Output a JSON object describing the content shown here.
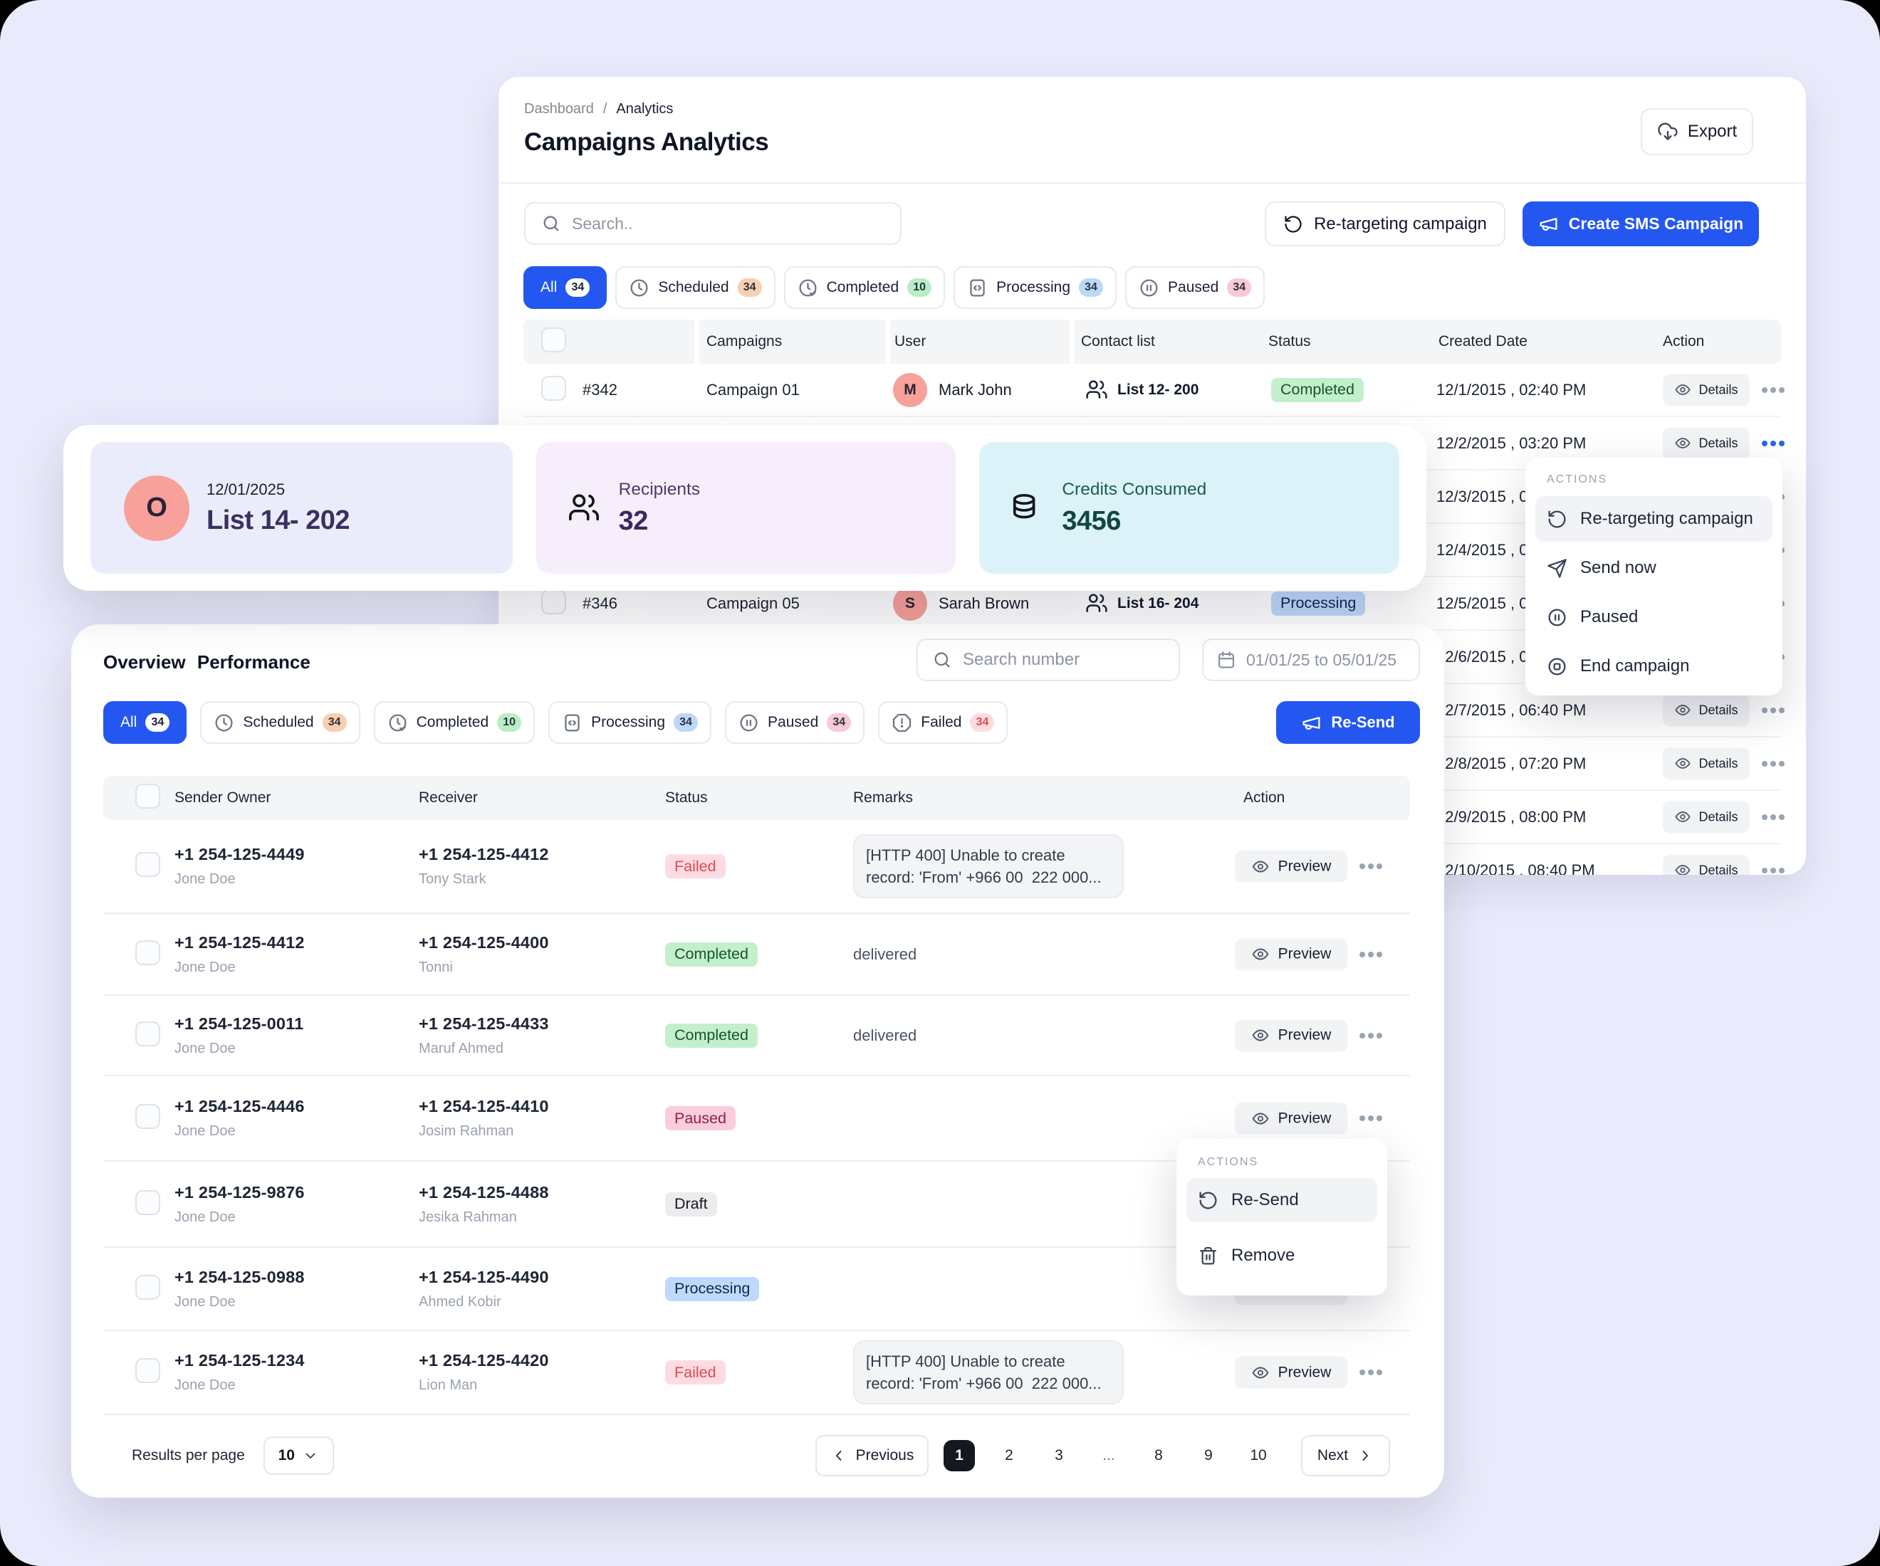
{
  "breadcrumb": {
    "items": [
      "Dashboard",
      "Analytics"
    ],
    "separator": "/"
  },
  "page_title": "Campaigns Analytics",
  "header": {
    "export_label": "Export"
  },
  "toolbar": {
    "search_placeholder": "Search..",
    "retarget_label": "Re-targeting campaign",
    "create_label": "Create SMS Campaign"
  },
  "campaign_filters": [
    {
      "label": "All",
      "count": "34",
      "icon": null,
      "badge": "white",
      "active": true
    },
    {
      "label": "Scheduled",
      "count": "34",
      "icon": "clock",
      "badge": "orange",
      "active": false
    },
    {
      "label": "Completed",
      "count": "10",
      "icon": "clock-check",
      "badge": "green",
      "active": false
    },
    {
      "label": "Processing",
      "count": "34",
      "icon": "file-code",
      "badge": "blue",
      "active": false
    },
    {
      "label": "Paused",
      "count": "34",
      "icon": "pause-circle",
      "badge": "pink",
      "active": false
    }
  ],
  "campaign_table": {
    "headers": [
      "",
      "Campaigns",
      "User",
      "Contact list",
      "Status",
      "Created Date",
      "Action"
    ],
    "details_label": "Details",
    "rows": [
      {
        "id": "#342",
        "campaign": "Campaign 01",
        "user": "Mark John",
        "initial": "M",
        "contact": "List 12- 200",
        "status": "Completed",
        "status_type": "completed",
        "created": "12/1/2015 , 02:40 PM",
        "menu_open": false
      },
      {
        "id": "",
        "campaign": "",
        "user": "",
        "initial": "",
        "contact": "",
        "status": "",
        "status_type": "",
        "created": "12/2/2015 , 03:20 PM",
        "menu_open": true
      },
      {
        "id": "",
        "campaign": "",
        "user": "",
        "initial": "",
        "contact": "",
        "status": "",
        "status_type": "",
        "created": "12/3/2015 , 04:00 PM",
        "menu_open": false
      },
      {
        "id": "",
        "campaign": "",
        "user": "",
        "initial": "",
        "contact": "",
        "status": "",
        "status_type": "",
        "created": "12/4/2015 , 04:40 PM",
        "menu_open": false
      },
      {
        "id": "#346",
        "campaign": "Campaign 05",
        "user": "Sarah Brown",
        "initial": "S",
        "contact": "List 16- 204",
        "status": "Processing",
        "status_type": "processing",
        "created": "12/5/2015 , 05:20 PM",
        "menu_open": false
      },
      {
        "id": "",
        "campaign": "",
        "user": "",
        "initial": "",
        "contact": "",
        "status": "",
        "status_type": "",
        "created": "12/6/2015 , 06:00 PM",
        "menu_open": false
      },
      {
        "id": "",
        "campaign": "",
        "user": "",
        "initial": "",
        "contact": "",
        "status": "",
        "status_type": "",
        "created": "12/7/2015 , 06:40 PM",
        "menu_open": false
      },
      {
        "id": "",
        "campaign": "",
        "user": "",
        "initial": "",
        "contact": "",
        "status": "",
        "status_type": "",
        "created": "12/8/2015 , 07:20 PM",
        "menu_open": false
      },
      {
        "id": "",
        "campaign": "",
        "user": "",
        "initial": "",
        "contact": "",
        "status": "",
        "status_type": "",
        "created": "12/9/2015 , 08:00 PM",
        "menu_open": false
      },
      {
        "id": "",
        "campaign": "",
        "user": "",
        "initial": "",
        "contact": "",
        "status": "",
        "status_type": "",
        "created": "12/10/2015 , 08:40 PM",
        "menu_open": false
      }
    ]
  },
  "stats_card": {
    "avatar": "O",
    "date": "12/01/2025",
    "list": "List 14- 202",
    "recipients_label": "Recipients",
    "recipients_value": "32",
    "credits_label": "Credits Consumed",
    "credits_value": "3456"
  },
  "campaign_actions_menu": {
    "title": "ACTIONS",
    "items": [
      {
        "label": "Re-targeting campaign",
        "icon": "rotate-ccw",
        "highlight": true
      },
      {
        "label": "Send now",
        "icon": "send",
        "highlight": false
      },
      {
        "label": "Paused",
        "icon": "pause-circle",
        "highlight": false
      },
      {
        "label": "End campaign",
        "icon": "stop-circle",
        "highlight": false
      }
    ]
  },
  "overview": {
    "title": "Overview Performance",
    "search_placeholder": "Search number",
    "date_range": "01/01/25 to 05/01/25",
    "resend_label": "Re-Send",
    "filters": [
      {
        "label": "All",
        "count": "34",
        "icon": null,
        "badge": "white",
        "active": true
      },
      {
        "label": "Scheduled",
        "count": "34",
        "icon": "clock",
        "badge": "orange",
        "active": false
      },
      {
        "label": "Completed",
        "count": "10",
        "icon": "clock-check",
        "badge": "green",
        "active": false
      },
      {
        "label": "Processing",
        "count": "34",
        "icon": "file-code",
        "badge": "blue",
        "active": false
      },
      {
        "label": "Paused",
        "count": "34",
        "icon": "pause-circle",
        "badge": "pink",
        "active": false
      },
      {
        "label": "Failed",
        "count": "34",
        "icon": "alert-octagon",
        "badge": "red",
        "active": false
      }
    ],
    "table": {
      "headers": [
        "Sender Owner",
        "Receiver",
        "Status",
        "Remarks",
        "Action"
      ],
      "preview_label": "Preview",
      "rows": [
        {
          "sender_phone": "+1 254-125-4449",
          "sender_name": "Jone Doe",
          "receiver_phone": "+1 254-125-4412",
          "receiver_name": "Tony Stark",
          "status": "Failed",
          "status_type": "failed",
          "remark_lines": [
            "[HTTP 400] Unable to create",
            "record: 'From' +966 00  222 000..."
          ],
          "remark_boxed": true
        },
        {
          "sender_phone": "+1 254-125-4412",
          "sender_name": "Jone Doe",
          "receiver_phone": "+1 254-125-4400",
          "receiver_name": "Tonni",
          "status": "Completed",
          "status_type": "completed",
          "remark_lines": [
            "delivered"
          ],
          "remark_boxed": false
        },
        {
          "sender_phone": "+1 254-125-0011",
          "sender_name": "Jone Doe",
          "receiver_phone": "+1 254-125-4433",
          "receiver_name": "Maruf Ahmed",
          "status": "Completed",
          "status_type": "completed",
          "remark_lines": [
            "delivered"
          ],
          "remark_boxed": false
        },
        {
          "sender_phone": "+1 254-125-4446",
          "sender_name": "Jone Doe",
          "receiver_phone": "+1 254-125-4410",
          "receiver_name": "Josim Rahman",
          "status": "Paused",
          "status_type": "paused",
          "remark_lines": [],
          "remark_boxed": false
        },
        {
          "sender_phone": "+1 254-125-9876",
          "sender_name": "Jone Doe",
          "receiver_phone": "+1 254-125-4488",
          "receiver_name": "Jesika Rahman",
          "status": "Draft",
          "status_type": "draft",
          "remark_lines": [],
          "remark_boxed": false
        },
        {
          "sender_phone": "+1 254-125-0988",
          "sender_name": "Jone Doe",
          "receiver_phone": "+1 254-125-4490",
          "receiver_name": "Ahmed Kobir",
          "status": "Processing",
          "status_type": "processing",
          "remark_lines": [],
          "remark_boxed": false
        },
        {
          "sender_phone": "+1 254-125-1234",
          "sender_name": "Jone Doe",
          "receiver_phone": "+1 254-125-4420",
          "receiver_name": "Lion Man",
          "status": "Failed",
          "status_type": "failed",
          "remark_lines": [
            "[HTTP 400] Unable to create",
            "record: 'From' +966 00  222 000..."
          ],
          "remark_boxed": true
        }
      ]
    },
    "row_actions_menu": {
      "title": "ACTIONS",
      "items": [
        {
          "label": "Re-Send",
          "icon": "rotate-ccw",
          "highlight": true
        },
        {
          "label": "Remove",
          "icon": "trash",
          "highlight": false
        }
      ]
    },
    "pagination": {
      "results_label": "Results per page",
      "per_page": "10",
      "previous_label": "Previous",
      "pages": [
        "1",
        "2",
        "3",
        "...",
        "8",
        "9",
        "10"
      ],
      "active_page": "1",
      "next_label": "Next"
    }
  }
}
